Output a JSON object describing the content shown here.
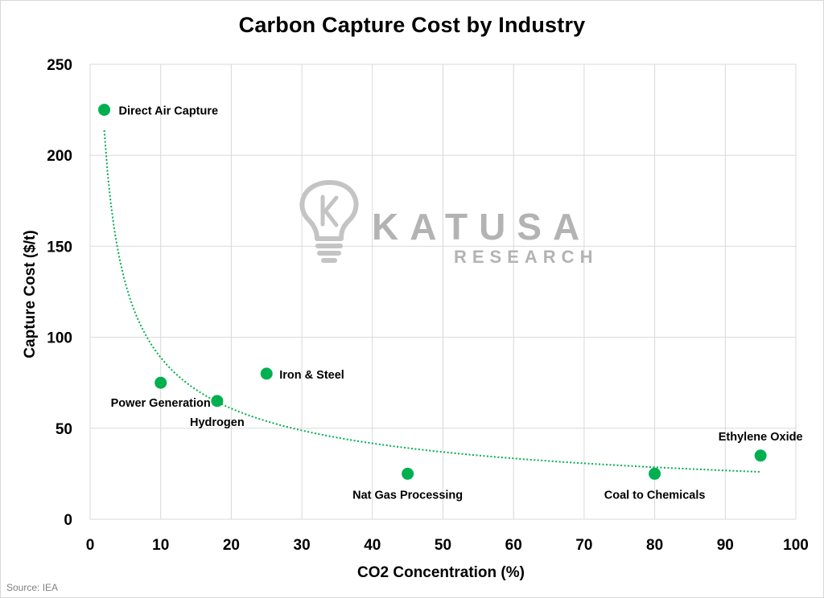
{
  "chart_data": {
    "type": "scatter",
    "title": "Carbon Capture Cost by Industry",
    "xlabel": "CO2 Concentration (%)",
    "ylabel": "Capture Cost ($/t)",
    "xlim": [
      0,
      100
    ],
    "ylim": [
      0,
      250
    ],
    "x_ticks": [
      0,
      10,
      20,
      30,
      40,
      50,
      60,
      70,
      80,
      90,
      100
    ],
    "y_ticks": [
      0,
      50,
      100,
      150,
      200,
      250
    ],
    "grid": true,
    "legend": "none",
    "points": [
      {
        "label": "Direct Air Capture",
        "x": 2,
        "y": 225
      },
      {
        "label": "Power Generation",
        "x": 10,
        "y": 75
      },
      {
        "label": "Hydrogen",
        "x": 18,
        "y": 65
      },
      {
        "label": "Iron & Steel",
        "x": 25,
        "y": 80
      },
      {
        "label": "Nat Gas Processing",
        "x": 45,
        "y": 25
      },
      {
        "label": "Coal to Chemicals",
        "x": 80,
        "y": 25
      },
      {
        "label": "Ethylene Oxide",
        "x": 95,
        "y": 35
      }
    ],
    "trendline": {
      "type": "power",
      "style": "dotted",
      "x_start": 2,
      "x_end": 95
    },
    "colors": {
      "marker": "#00b050",
      "trendline": "#00b050",
      "grid": "#d9d9d9"
    }
  },
  "watermark": {
    "brand": "KATUSA",
    "sub": "RESEARCH"
  },
  "source": "Source: IEA"
}
